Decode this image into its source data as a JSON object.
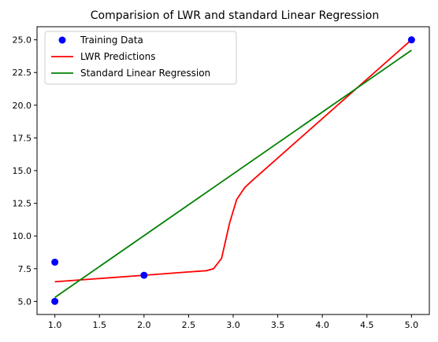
{
  "chart_data": {
    "type": "scatter",
    "title": "Comparision of LWR and standard Linear Regression",
    "xlabel": "",
    "ylabel": "",
    "xlim": [
      0.8,
      5.2
    ],
    "ylim": [
      4.0,
      26.0
    ],
    "x_ticks": [
      "1.0",
      "1.5",
      "2.0",
      "2.5",
      "3.0",
      "3.5",
      "4.0",
      "4.5",
      "5.0"
    ],
    "y_ticks": [
      "5.0",
      "7.5",
      "10.0",
      "12.5",
      "15.0",
      "17.5",
      "20.0",
      "22.5",
      "25.0"
    ],
    "grid": false,
    "legend_position": "top-left",
    "series": [
      {
        "name": "Training Data",
        "kind": "scatter",
        "color": "#0000ff",
        "points": [
          [
            1.0,
            5.0
          ],
          [
            1.0,
            8.0
          ],
          [
            2.0,
            7.0
          ],
          [
            5.0,
            25.0
          ]
        ]
      },
      {
        "name": "LWR Predictions",
        "kind": "line",
        "color": "#ff0000",
        "points": [
          [
            1.0,
            6.5
          ],
          [
            2.0,
            7.0
          ],
          [
            2.5,
            7.25
          ],
          [
            2.7,
            7.35
          ],
          [
            2.78,
            7.5
          ],
          [
            2.87,
            8.3
          ],
          [
            2.96,
            11.0
          ],
          [
            3.04,
            12.8
          ],
          [
            3.13,
            13.7
          ],
          [
            3.2,
            14.15
          ],
          [
            5.0,
            25.0
          ]
        ]
      },
      {
        "name": "Standard Linear Regression",
        "kind": "line",
        "color": "#008000",
        "points": [
          [
            1.0,
            5.3
          ],
          [
            5.0,
            24.2
          ]
        ]
      }
    ]
  }
}
